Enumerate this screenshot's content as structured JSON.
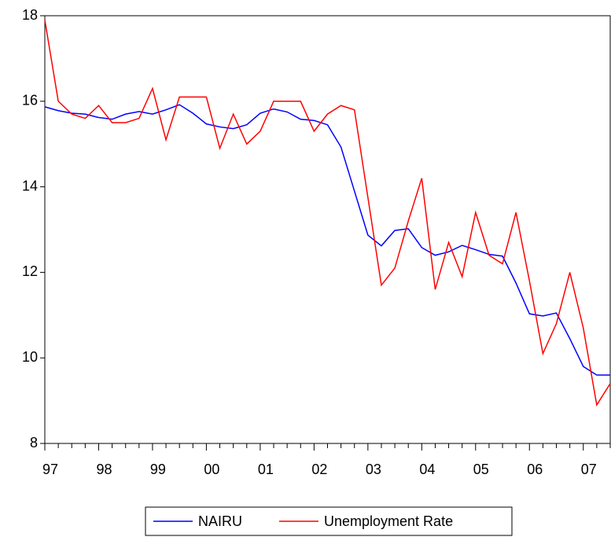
{
  "chart_data": {
    "type": "line",
    "categories": [
      "97",
      null,
      null,
      null,
      "98",
      null,
      null,
      null,
      "99",
      null,
      null,
      null,
      "00",
      null,
      null,
      null,
      "01",
      null,
      null,
      null,
      "02",
      null,
      null,
      null,
      "03",
      null,
      null,
      null,
      "04",
      null,
      null,
      null,
      "05",
      null,
      null,
      null,
      "06",
      null,
      null,
      null,
      "07",
      null,
      null
    ],
    "series": [
      {
        "name": "NAIRU",
        "color": "#0000ff",
        "values": [
          15.87,
          15.78,
          15.72,
          15.7,
          15.62,
          15.58,
          15.7,
          15.76,
          15.7,
          15.8,
          15.92,
          15.72,
          15.47,
          15.4,
          15.36,
          15.45,
          15.72,
          15.82,
          15.75,
          15.58,
          15.55,
          15.45,
          14.93,
          13.9,
          12.87,
          12.62,
          12.98,
          13.02,
          12.58,
          12.4,
          12.48,
          12.63,
          12.53,
          12.42,
          12.38,
          11.75,
          11.03,
          10.98,
          11.05,
          10.45,
          9.8,
          9.6,
          9.6
        ]
      },
      {
        "name": "Unemployment Rate",
        "color": "#ff0000",
        "values": [
          17.9,
          16.0,
          15.7,
          15.6,
          15.9,
          15.5,
          15.5,
          15.6,
          16.3,
          15.1,
          16.1,
          16.1,
          16.1,
          14.9,
          15.7,
          15.0,
          15.3,
          16.0,
          16.0,
          16.0,
          15.3,
          15.7,
          15.9,
          15.8,
          13.75,
          11.7,
          12.1,
          13.2,
          14.2,
          11.6,
          12.7,
          11.9,
          13.4,
          12.4,
          12.2,
          13.4,
          11.8,
          10.1,
          10.8,
          12.0,
          10.7,
          8.9,
          9.4
        ]
      }
    ],
    "ylim": [
      8,
      18
    ],
    "yticks": [
      8,
      10,
      12,
      14,
      16,
      18
    ],
    "grid": false,
    "legend": "bottom"
  }
}
